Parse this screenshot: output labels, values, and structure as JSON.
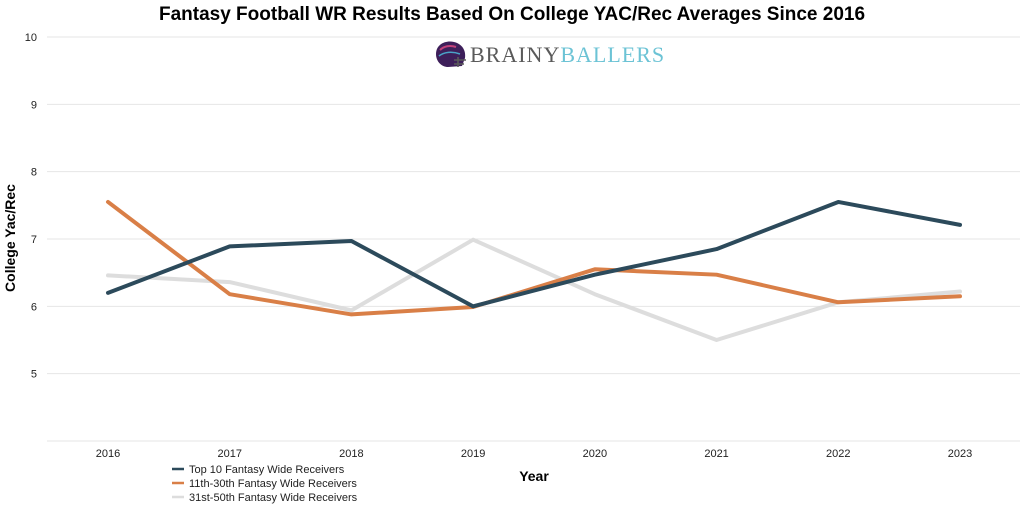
{
  "chart_data": {
    "type": "line",
    "title": "Fantasy Football WR Results Based On College YAC/Rec Averages Since 2016",
    "xlabel": "Year",
    "ylabel": "College Yac/Rec",
    "categories": [
      "2016",
      "2017",
      "2018",
      "2019",
      "2020",
      "2021",
      "2022",
      "2023"
    ],
    "ylim": [
      4,
      10
    ],
    "yticks": [
      5,
      6,
      7,
      8,
      9,
      10
    ],
    "grid": true,
    "legend_position": "bottom-left",
    "series": [
      {
        "name": "31st-50th Fantasy Wide Receivers",
        "color": "#dddddd",
        "values": [
          6.46,
          6.36,
          5.94,
          6.99,
          6.18,
          5.5,
          6.06,
          6.22
        ]
      },
      {
        "name": "11th-30th Fantasy Wide Receivers",
        "color": "#d97f47",
        "values": [
          7.55,
          6.18,
          5.88,
          5.99,
          6.55,
          6.47,
          6.06,
          6.15
        ]
      },
      {
        "name": "Top 10 Fantasy Wide Receivers",
        "color": "#2c4a5b",
        "values": [
          6.2,
          6.89,
          6.97,
          6.0,
          6.47,
          6.85,
          7.55,
          7.21
        ]
      }
    ]
  },
  "brand": {
    "part1": "BRAINY",
    "part2": "BALLERS",
    "icon": "football-helmet-icon"
  }
}
